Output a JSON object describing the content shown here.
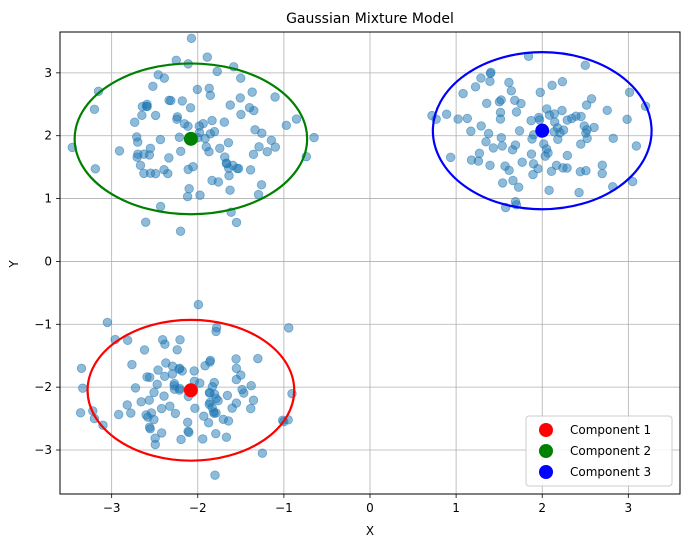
{
  "chart_data": {
    "type": "scatter",
    "title": "Gaussian Mixture Model",
    "xlabel": "X",
    "ylabel": "Y",
    "xlim": [
      -3.6,
      3.6
    ],
    "ylim": [
      -3.7,
      3.65
    ],
    "xticks": [
      -3,
      -2,
      -1,
      0,
      1,
      2,
      3
    ],
    "yticks": [
      -3,
      -2,
      -1,
      0,
      1,
      2,
      3
    ],
    "xtick_labels": [
      "−3",
      "−2",
      "−1",
      "0",
      "1",
      "2",
      "3"
    ],
    "ytick_labels": [
      "−3",
      "−2",
      "−1",
      "0",
      "1",
      "2",
      "3"
    ],
    "grid": true,
    "legend_position": "bottom-right",
    "point_color": "#1f77b4",
    "clusters": [
      {
        "center": [
          -2.1,
          -2.05
        ],
        "spread": 0.5,
        "n": 100,
        "seed": 11,
        "outliers": [
          [
            -3.35,
            -1.7
          ],
          [
            -3.05,
            -0.97
          ],
          [
            -1.8,
            -3.4
          ],
          [
            -0.95,
            -2.52
          ],
          [
            -3.2,
            -2.5
          ],
          [
            -1.25,
            -3.05
          ]
        ]
      },
      {
        "center": [
          -2.05,
          1.95
        ],
        "spread": 0.52,
        "n": 100,
        "seed": 23,
        "outliers": [
          [
            -2.25,
            3.2
          ],
          [
            -2.2,
            0.48
          ],
          [
            -0.65,
            1.97
          ],
          [
            -3.2,
            2.42
          ],
          [
            -1.55,
            0.62
          ]
        ]
      },
      {
        "center": [
          1.95,
          2.05
        ],
        "spread": 0.5,
        "n": 100,
        "seed": 37,
        "outliers": [
          [
            0.72,
            2.32
          ],
          [
            1.7,
            0.9
          ],
          [
            2.5,
            3.12
          ],
          [
            3.2,
            2.47
          ],
          [
            3.05,
            1.27
          ]
        ]
      }
    ],
    "components": [
      {
        "name": "Component 1",
        "mean": [
          -2.08,
          -2.05
        ],
        "color": "#ff0000",
        "ellipse_rx": 1.2,
        "ellipse_ry": 1.12
      },
      {
        "name": "Component 2",
        "mean": [
          -2.08,
          1.95
        ],
        "color": "#008000",
        "ellipse_rx": 1.35,
        "ellipse_ry": 1.2
      },
      {
        "name": "Component 3",
        "mean": [
          2.0,
          2.08
        ],
        "color": "#0000ff",
        "ellipse_rx": 1.27,
        "ellipse_ry": 1.25
      }
    ]
  }
}
